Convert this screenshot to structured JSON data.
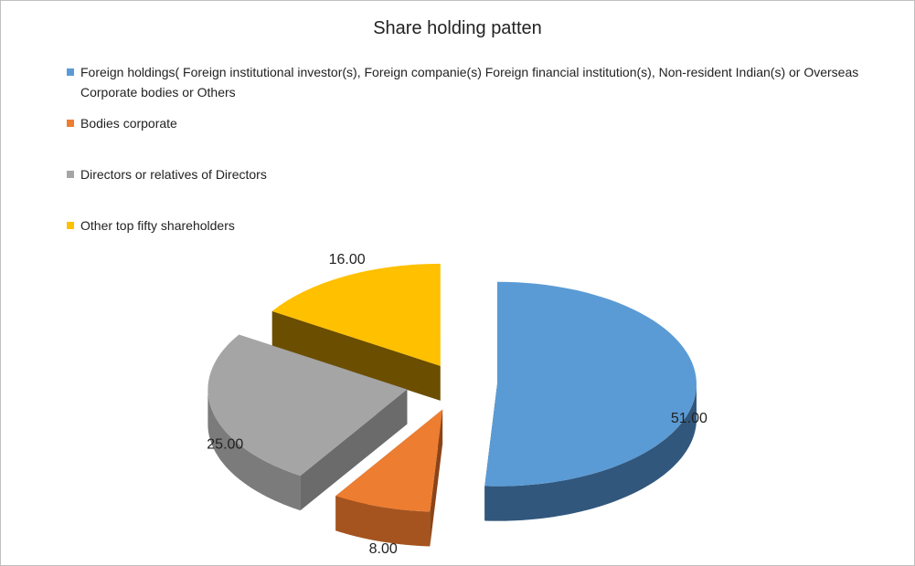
{
  "chart_data": {
    "type": "pie",
    "title": "Share holding patten",
    "legend_position": "top",
    "slices": [
      {
        "label": "Foreign holdings( Foreign institutional investor(s), Foreign companie(s) Foreign financial institution(s), Non-resident Indian(s) or Overseas Corporate bodies or Others",
        "value": 51.0,
        "display": "51.00",
        "color": "#5b9bd5",
        "dark": "#223d5c"
      },
      {
        "label": "Bodies corporate",
        "value": 8.0,
        "display": "8.00",
        "color": "#ed7d31",
        "dark": "#8a4418"
      },
      {
        "label": "Directors or relatives of Directors",
        "value": 25.0,
        "display": "25.00",
        "color": "#a5a5a5",
        "dark": "#6b6b6b"
      },
      {
        "label": "Other top fifty shareholders",
        "value": 16.0,
        "display": "16.00",
        "color": "#ffc000",
        "dark": "#6b4e00"
      }
    ]
  }
}
